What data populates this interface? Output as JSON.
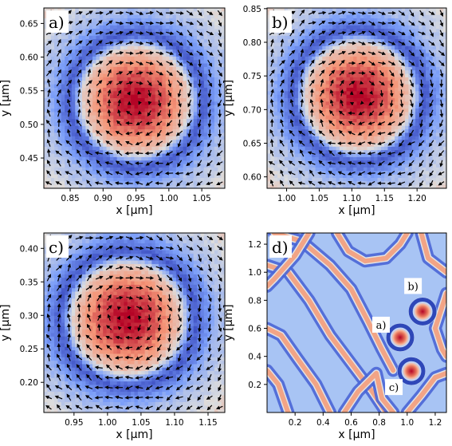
{
  "chart_data": [
    {
      "type": "heatmap",
      "panel_label": "a)",
      "xlabel": "x [µm]",
      "ylabel": "y [µm]",
      "xlim": [
        0.81,
        1.085
      ],
      "ylim": [
        0.405,
        0.673
      ],
      "xticks": [
        "0.85",
        "0.90",
        "0.95",
        "1.00",
        "1.05"
      ],
      "xtick_values": [
        0.85,
        0.9,
        0.95,
        1.0,
        1.05
      ],
      "yticks": [
        "0.45",
        "0.50",
        "0.55",
        "0.60",
        "0.65"
      ],
      "ytick_values": [
        0.45,
        0.5,
        0.55,
        0.6,
        0.65
      ],
      "center": [
        0.95,
        0.535
      ],
      "arrows": true,
      "colormap": "coolwarm"
    },
    {
      "type": "heatmap",
      "panel_label": "b)",
      "xlabel": "x [µm]",
      "ylabel": "y [µm]",
      "xlim": [
        0.97,
        1.245
      ],
      "ylim": [
        0.583,
        0.851
      ],
      "xticks": [
        "1.00",
        "1.05",
        "1.10",
        "1.15",
        "1.20"
      ],
      "xtick_values": [
        1.0,
        1.05,
        1.1,
        1.15,
        1.2
      ],
      "yticks": [
        "0.60",
        "0.65",
        "0.70",
        "0.75",
        "0.80",
        "0.85"
      ],
      "ytick_values": [
        0.6,
        0.65,
        0.7,
        0.75,
        0.8,
        0.85
      ],
      "center": [
        1.11,
        0.72
      ],
      "arrows": true,
      "colormap": "coolwarm"
    },
    {
      "type": "heatmap",
      "panel_label": "c)",
      "xlabel": "x [µm]",
      "ylabel": "y [µm]",
      "xlim": [
        0.905,
        1.175
      ],
      "ylim": [
        0.155,
        0.423
      ],
      "xticks": [
        "0.95",
        "1.00",
        "1.05",
        "1.10",
        "1.15"
      ],
      "xtick_values": [
        0.95,
        1.0,
        1.05,
        1.1,
        1.15
      ],
      "yticks": [
        "0.20",
        "0.25",
        "0.30",
        "0.35",
        "0.40"
      ],
      "ytick_values": [
        0.2,
        0.25,
        0.3,
        0.35,
        0.4
      ],
      "center": [
        1.03,
        0.295
      ],
      "arrows": true,
      "colormap": "coolwarm"
    },
    {
      "type": "heatmap",
      "panel_label": "d)",
      "xlabel": "x [µm]",
      "ylabel": "y [µm]",
      "xlim": [
        0.0,
        1.28
      ],
      "ylim": [
        0.0,
        1.28
      ],
      "xticks": [
        "0.2",
        "0.4",
        "0.6",
        "0.8",
        "1.0",
        "1.2"
      ],
      "xtick_values": [
        0.2,
        0.4,
        0.6,
        0.8,
        1.0,
        1.2
      ],
      "yticks": [
        "0.2",
        "0.4",
        "0.6",
        "0.8",
        "1.0",
        "1.2"
      ],
      "ytick_values": [
        0.2,
        0.4,
        0.6,
        0.8,
        1.0,
        1.2
      ],
      "colormap": "coolwarm",
      "stripes": true,
      "skyrmions": [
        {
          "label": "a)",
          "x": 0.95,
          "y": 0.535
        },
        {
          "label": "b)",
          "x": 1.11,
          "y": 0.72
        },
        {
          "label": "c)",
          "x": 1.03,
          "y": 0.295
        }
      ]
    }
  ]
}
